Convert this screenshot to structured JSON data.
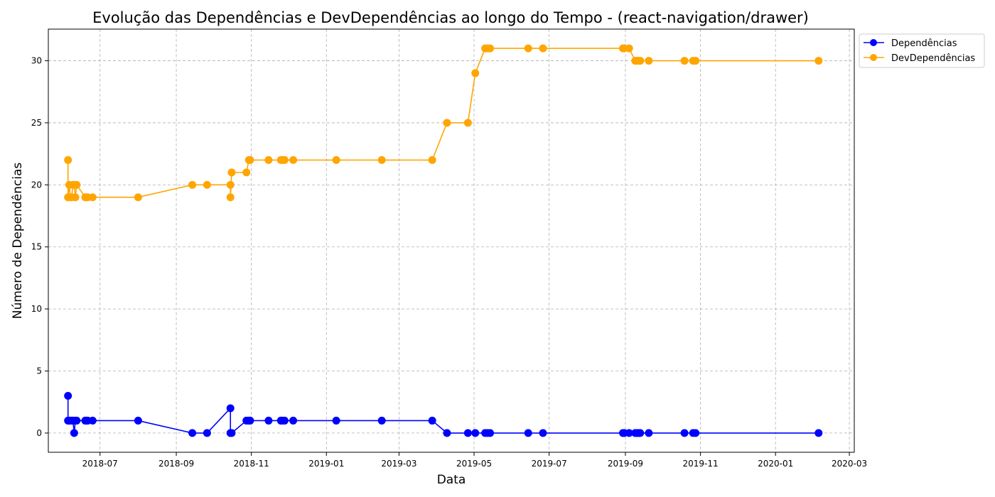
{
  "chart_data": {
    "type": "line",
    "title": "Evolução das Dependências e DevDependências ao longo do Tempo - (react-navigation/drawer)",
    "xlabel": "Data",
    "ylabel": "Número de Dependências",
    "x_ticks": [
      "2018-07",
      "2018-09",
      "2018-11",
      "2019-01",
      "2019-03",
      "2019-05",
      "2019-07",
      "2019-09",
      "2019-11",
      "2020-01",
      "2020-03"
    ],
    "y_ticks": [
      0,
      5,
      10,
      15,
      20,
      25,
      30
    ],
    "xlim": [
      "2018-05-20",
      "2020-03-05"
    ],
    "ylim": [
      -1.55,
      32.55
    ],
    "grid": true,
    "legend_position": "outside-top-right",
    "x": [
      "2018-06-05",
      "2018-06-05",
      "2018-06-06",
      "2018-06-07",
      "2018-06-08",
      "2018-06-09",
      "2018-06-10",
      "2018-06-11",
      "2018-06-12",
      "2018-06-19",
      "2018-06-20",
      "2018-06-21",
      "2018-06-25",
      "2018-08-01",
      "2018-09-14",
      "2018-09-26",
      "2018-10-15",
      "2018-10-15",
      "2018-10-16",
      "2018-10-28",
      "2018-10-30",
      "2018-10-31",
      "2018-11-15",
      "2018-11-25",
      "2018-11-26",
      "2018-11-28",
      "2018-12-05",
      "2019-01-09",
      "2019-02-15",
      "2019-03-28",
      "2019-04-09",
      "2019-04-26",
      "2019-05-02",
      "2019-05-10",
      "2019-05-12",
      "2019-05-14",
      "2019-06-14",
      "2019-06-26",
      "2019-08-30",
      "2019-08-31",
      "2019-09-04",
      "2019-09-09",
      "2019-09-10",
      "2019-09-11",
      "2019-09-12",
      "2019-09-13",
      "2019-09-20",
      "2019-10-19",
      "2019-10-26",
      "2019-10-28",
      "2020-02-05"
    ],
    "series": [
      {
        "name": "Dependências",
        "color": "#0000ff",
        "values": [
          3,
          1,
          1,
          1,
          1,
          1,
          0,
          1,
          1,
          1,
          1,
          1,
          1,
          1,
          0,
          0,
          2,
          0,
          0,
          1,
          1,
          1,
          1,
          1,
          1,
          1,
          1,
          1,
          1,
          1,
          0,
          0,
          0,
          0,
          0,
          0,
          0,
          0,
          0,
          0,
          0,
          0,
          0,
          0,
          0,
          0,
          0,
          0,
          0,
          0,
          0
        ]
      },
      {
        "name": "DevDependências",
        "color": "#ffa500",
        "values": [
          22,
          19,
          20,
          19,
          19,
          20,
          20,
          19,
          20,
          19,
          19,
          19,
          19,
          19,
          20,
          20,
          20,
          19,
          21,
          21,
          22,
          22,
          22,
          22,
          22,
          22,
          22,
          22,
          22,
          22,
          25,
          25,
          29,
          31,
          31,
          31,
          31,
          31,
          31,
          31,
          31,
          30,
          30,
          30,
          30,
          30,
          30,
          30,
          30,
          30,
          30
        ]
      }
    ]
  }
}
